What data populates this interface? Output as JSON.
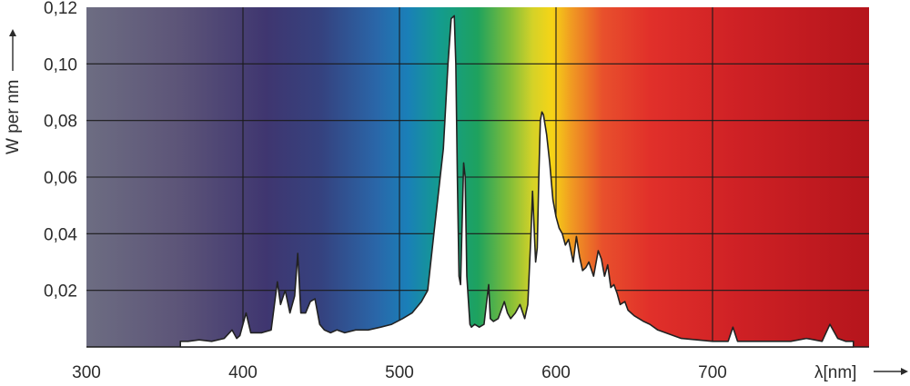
{
  "chart_data": {
    "type": "area",
    "title": "",
    "xlabel": "λ[nm]",
    "ylabel": "W per nm",
    "xlim": [
      300,
      800
    ],
    "ylim": [
      0,
      0.12
    ],
    "grid": true,
    "x_ticks": [
      300,
      400,
      500,
      600,
      700
    ],
    "x_tick_labels": [
      "300",
      "400",
      "500",
      "600",
      "700"
    ],
    "y_ticks": [
      0.02,
      0.04,
      0.06,
      0.08,
      0.1,
      0.12
    ],
    "y_tick_labels": [
      "0,02",
      "0,04",
      "0,06",
      "0,08",
      "0,10",
      "0,12"
    ],
    "background": "visible-spectrum gradient from violet-grey (300 nm) through blue, green, yellow to deep red (800 nm)",
    "series": [
      {
        "fill_color": "#ffffff",
        "line_color": "#222222",
        "x": [
          360,
          365,
          372,
          380,
          388,
          393,
          396,
          398,
          402,
          405,
          408,
          412,
          418,
          422,
          424,
          427,
          430,
          433,
          435,
          437,
          440,
          443,
          446,
          449,
          452,
          456,
          460,
          465,
          472,
          480,
          488,
          495,
          502,
          508,
          514,
          518,
          522,
          528,
          531,
          533,
          535,
          536,
          537,
          538,
          539,
          541,
          542,
          543,
          545,
          546,
          548,
          551,
          554,
          557,
          558,
          560,
          563,
          567,
          569,
          571,
          574,
          577,
          580,
          582,
          584,
          585,
          587,
          588,
          589,
          590,
          591,
          592,
          594,
          596,
          598,
          600,
          602,
          604,
          606,
          608,
          611,
          613,
          615,
          617,
          619,
          621,
          624,
          627,
          629,
          631,
          633,
          635,
          637,
          639,
          641,
          644,
          646,
          648,
          650,
          653,
          656,
          660,
          665,
          670,
          675,
          680,
          690,
          700,
          710,
          713,
          716,
          720,
          730,
          740,
          750,
          760,
          770,
          775,
          777,
          780,
          785,
          790
        ],
        "y": [
          0.002,
          0.002,
          0.0025,
          0.002,
          0.003,
          0.006,
          0.003,
          0.004,
          0.012,
          0.005,
          0.005,
          0.005,
          0.006,
          0.023,
          0.015,
          0.02,
          0.012,
          0.018,
          0.033,
          0.012,
          0.012,
          0.016,
          0.017,
          0.008,
          0.006,
          0.005,
          0.006,
          0.005,
          0.006,
          0.006,
          0.007,
          0.008,
          0.01,
          0.012,
          0.016,
          0.02,
          0.04,
          0.07,
          0.1,
          0.116,
          0.117,
          0.1,
          0.06,
          0.025,
          0.022,
          0.065,
          0.06,
          0.025,
          0.008,
          0.007,
          0.008,
          0.007,
          0.008,
          0.022,
          0.01,
          0.009,
          0.01,
          0.016,
          0.012,
          0.01,
          0.012,
          0.015,
          0.01,
          0.015,
          0.04,
          0.055,
          0.03,
          0.035,
          0.06,
          0.08,
          0.083,
          0.082,
          0.075,
          0.065,
          0.052,
          0.046,
          0.042,
          0.04,
          0.036,
          0.038,
          0.03,
          0.039,
          0.032,
          0.027,
          0.028,
          0.03,
          0.025,
          0.034,
          0.031,
          0.025,
          0.029,
          0.021,
          0.022,
          0.019,
          0.015,
          0.016,
          0.013,
          0.012,
          0.011,
          0.01,
          0.009,
          0.008,
          0.006,
          0.005,
          0.004,
          0.003,
          0.0025,
          0.002,
          0.002,
          0.007,
          0.002,
          0.002,
          0.002,
          0.002,
          0.002,
          0.003,
          0.002,
          0.008,
          0.006,
          0.003,
          0.002,
          0.002
        ]
      }
    ]
  }
}
